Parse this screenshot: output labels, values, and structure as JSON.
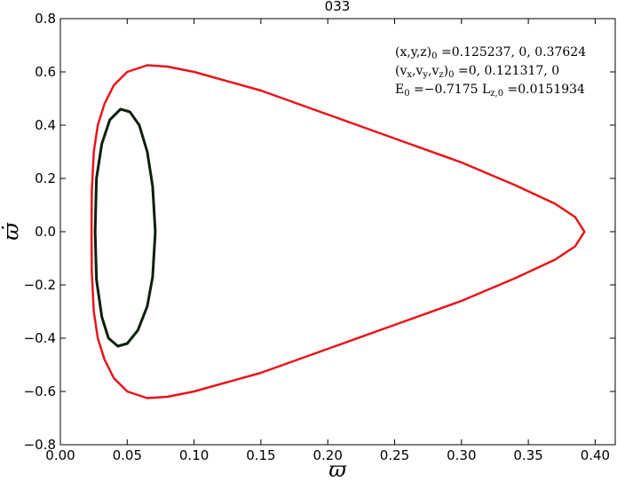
{
  "chart_data": {
    "type": "line",
    "title": "033",
    "x_label": "ϖ",
    "y_label": "ϖ̇",
    "xlim": [
      0,
      0.415
    ],
    "ylim": [
      -0.8,
      0.8
    ],
    "xticks": [
      {
        "value": 0,
        "label": "0.00"
      },
      {
        "value": 0.05,
        "label": "0.05"
      },
      {
        "value": 0.1,
        "label": "0.10"
      },
      {
        "value": 0.15,
        "label": "0.15"
      },
      {
        "value": 0.2,
        "label": "0.20"
      },
      {
        "value": 0.25,
        "label": "0.25"
      },
      {
        "value": 0.3,
        "label": "0.30"
      },
      {
        "value": 0.35,
        "label": "0.35"
      },
      {
        "value": 0.4,
        "label": "0.40"
      }
    ],
    "yticks": [
      {
        "value": -0.8,
        "label": "−0.8"
      },
      {
        "value": -0.6,
        "label": "−0.6"
      },
      {
        "value": -0.4,
        "label": "−0.4"
      },
      {
        "value": -0.2,
        "label": "−0.2"
      },
      {
        "value": 0,
        "label": "0.0"
      },
      {
        "value": 0.2,
        "label": "0.2"
      },
      {
        "value": 0.4,
        "label": "0.4"
      },
      {
        "value": 0.6,
        "label": "0.6"
      },
      {
        "value": 0.8,
        "label": "0.8"
      }
    ],
    "grid": false,
    "series": [
      {
        "color": "#e8141b",
        "width": 2.5,
        "x": [
          0.0233,
          0.0235,
          0.025,
          0.028,
          0.033,
          0.04,
          0.05,
          0.065,
          0.08,
          0.1,
          0.15,
          0.2,
          0.25,
          0.3,
          0.34,
          0.37,
          0.385,
          0.392,
          0.385,
          0.37,
          0.34,
          0.3,
          0.25,
          0.2,
          0.15,
          0.1,
          0.08,
          0.065,
          0.05,
          0.04,
          0.033,
          0.028,
          0.025,
          0.0235,
          0.0233
        ],
        "values": [
          0,
          0.15,
          0.3,
          0.4,
          0.48,
          0.55,
          0.6,
          0.625,
          0.62,
          0.6,
          0.53,
          0.44,
          0.35,
          0.26,
          0.175,
          0.105,
          0.055,
          0,
          -0.055,
          -0.105,
          -0.175,
          -0.26,
          -0.35,
          -0.44,
          -0.53,
          -0.6,
          -0.62,
          -0.625,
          -0.6,
          -0.55,
          -0.48,
          -0.4,
          -0.3,
          -0.15,
          0
        ]
      },
      {
        "color": "#0d1f0d",
        "width": 3,
        "x": [
          0.026,
          0.027,
          0.031,
          0.037,
          0.045,
          0.052,
          0.059,
          0.065,
          0.069,
          0.071,
          0.069,
          0.065,
          0.058,
          0.05,
          0.043,
          0.036,
          0.031,
          0.027,
          0.026
        ],
        "values": [
          0,
          0.2,
          0.33,
          0.42,
          0.46,
          0.45,
          0.4,
          0.3,
          0.17,
          0,
          -0.17,
          -0.28,
          -0.37,
          -0.42,
          -0.43,
          -0.4,
          -0.32,
          -0.18,
          0
        ]
      }
    ],
    "annotations": [
      [
        {
          "t": "(x,y,z)"
        },
        {
          "t": "0",
          "sub": true
        },
        {
          "t": " =0.125237, 0, 0.37624"
        }
      ],
      [
        {
          "t": "(v"
        },
        {
          "t": "x",
          "sub": true
        },
        {
          "t": ",v"
        },
        {
          "t": "y",
          "sub": true
        },
        {
          "t": ",v"
        },
        {
          "t": "z",
          "sub": true
        },
        {
          "t": ")"
        },
        {
          "t": "0",
          "sub": true
        },
        {
          "t": " =0, 0.121317, 0"
        }
      ],
      [
        {
          "t": "E"
        },
        {
          "t": "0",
          "sub": true
        },
        {
          "t": " =−0.7175  L"
        },
        {
          "t": "z,0",
          "sub": true
        },
        {
          "t": " =0.0151934"
        }
      ]
    ]
  }
}
